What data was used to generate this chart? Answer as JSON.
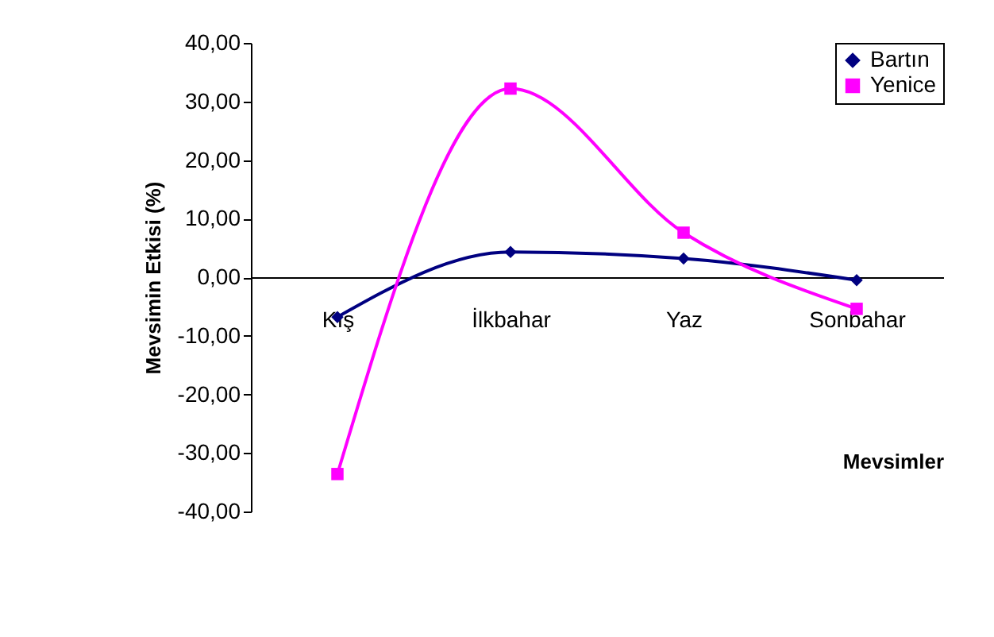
{
  "chart_data": {
    "type": "line",
    "ylabel": "Mevsimin Etkisi (%)",
    "xlabel": "Mevsimler",
    "categories": [
      "Kış",
      "İlkbahar",
      "Yaz",
      "Sonbahar"
    ],
    "series": [
      {
        "name": "Bartın",
        "color": "#000080",
        "values": [
          -6.8,
          4.3,
          3.2,
          -0.5
        ],
        "marker": "diamond"
      },
      {
        "name": "Yenice",
        "color": "#ff00ff",
        "values": [
          -33.6,
          32.2,
          7.6,
          -5.4
        ],
        "marker": "square"
      }
    ],
    "ylim": [
      -40,
      40
    ],
    "yticks": [
      {
        "value": -40,
        "label": "-40,00"
      },
      {
        "value": -30,
        "label": "-30,00"
      },
      {
        "value": -20,
        "label": "-20,00"
      },
      {
        "value": -10,
        "label": "-10,00"
      },
      {
        "value": 0,
        "label": "0,00"
      },
      {
        "value": 10,
        "label": "10,00"
      },
      {
        "value": 20,
        "label": "20,00"
      },
      {
        "value": 30,
        "label": "30,00"
      },
      {
        "value": 40,
        "label": "40,00"
      }
    ],
    "grid": false,
    "legend": "top right"
  }
}
